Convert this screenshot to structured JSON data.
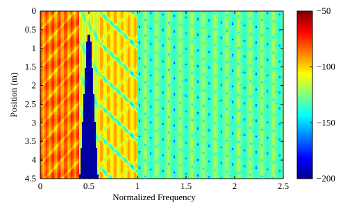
{
  "chart_data": {
    "type": "heatmap",
    "xlabel": "Normalized Frequency",
    "ylabel": "Position (m)",
    "xlim": [
      0,
      2.5
    ],
    "ylim": [
      0,
      4.5
    ],
    "y_inverted": true,
    "xticks": [
      0,
      0.5,
      1,
      1.5,
      2,
      2.5
    ],
    "xtick_labels": [
      "0",
      "0.5",
      "1",
      "1.5",
      "2",
      "2.5"
    ],
    "yticks": [
      0,
      0.5,
      1,
      1.5,
      2,
      2.5,
      3,
      3.5,
      4,
      4.5
    ],
    "ytick_labels": [
      "0",
      "0.5",
      "1",
      "1.5",
      "2",
      "2.5",
      "3",
      "3.5",
      "4",
      "4.5"
    ],
    "colorbar": {
      "range": [
        -200,
        -50
      ],
      "ticks": [
        -50,
        -100,
        -150,
        -200
      ],
      "tick_labels": [
        "−50",
        "−100",
        "−150",
        "−200"
      ],
      "colormap": "jet"
    },
    "features": {
      "stopband_x_range": [
        0.4,
        0.6
      ],
      "stopband_level": -195,
      "passband_level_low_freq": -85,
      "background_level_high_freq": -130,
      "fringe_level": -150
    }
  }
}
